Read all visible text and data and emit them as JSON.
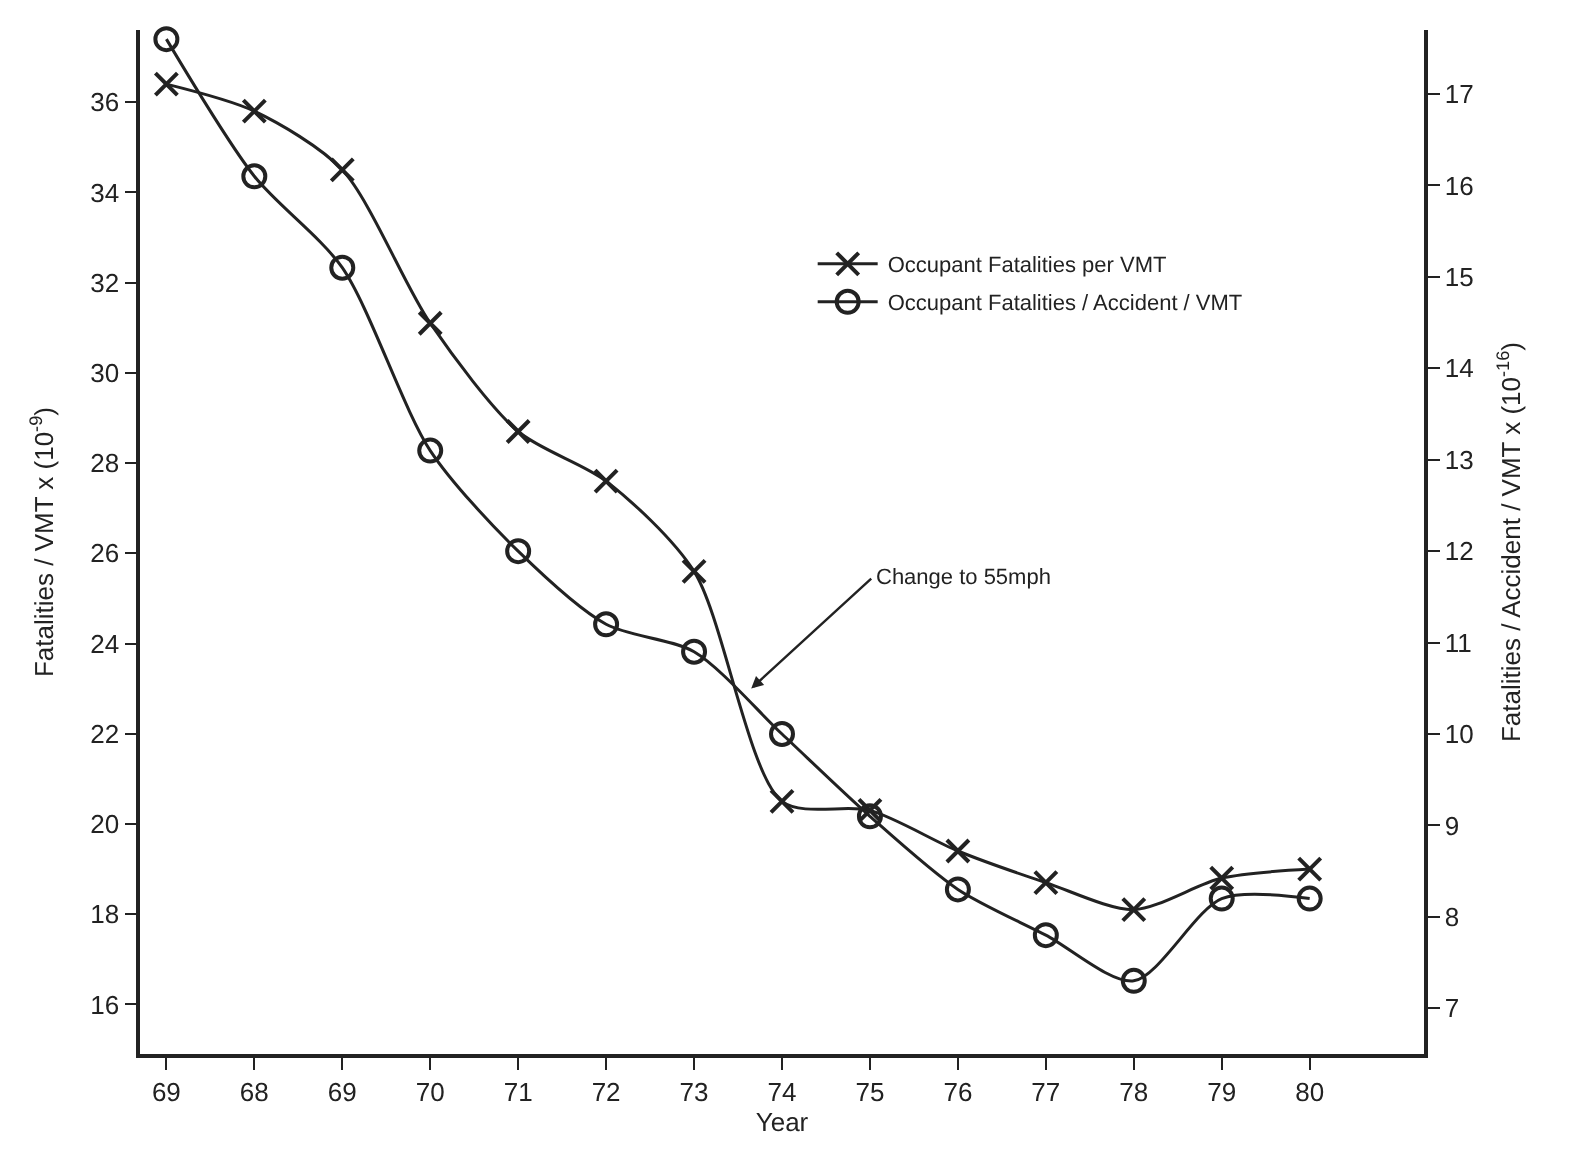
{
  "chart_data": {
    "type": "line",
    "xlabel": "Year",
    "ylabel": "Fatalities / VMT x (10$^{-9}$)",
    "y2label": "Fatalities / Accident / VMT x (10$^{-16}$)",
    "categories": [
      "69",
      "68",
      "69",
      "70",
      "71",
      "72",
      "73",
      "74",
      "75",
      "76",
      "77",
      "78",
      "79",
      "80"
    ],
    "series": [
      {
        "name": "Occupant Fatalities per VMT",
        "color": "#222222",
        "marker": "cross",
        "values": [
          36.4,
          35.8,
          34.5,
          31.1,
          28.7,
          27.6,
          25.6,
          20.5,
          20.3,
          19.4,
          18.7,
          18.1,
          18.8,
          19.0
        ]
      },
      {
        "name": "Occupant Fatalities / Accident / VMT",
        "color": "#222222",
        "marker": "circle",
        "axis": "y2",
        "values": [
          17.6,
          16.1,
          15.1,
          13.1,
          12.0,
          11.2,
          10.9,
          10.0,
          9.1,
          8.3,
          7.8,
          7.3,
          8.2,
          8.2
        ]
      }
    ],
    "ylim": [
      14.9,
      37.6
    ],
    "yticks": [
      16,
      18,
      20,
      22,
      24,
      26,
      28,
      30,
      32,
      34,
      36
    ],
    "y2lim": [
      6.5,
      17.7
    ],
    "y2ticks": [
      7,
      8,
      9,
      10,
      11,
      12,
      13,
      14,
      15,
      16,
      17
    ],
    "legend": "top right",
    "annotations": [
      "Change to 55mph"
    ]
  }
}
